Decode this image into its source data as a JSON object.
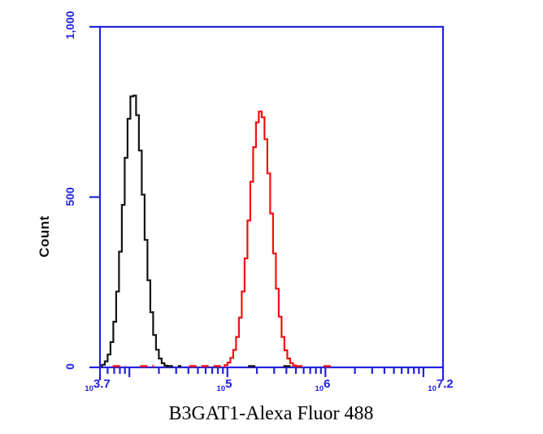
{
  "figure": {
    "background_color": "#ffffff",
    "axis_color": "#2222dd",
    "tick_label_color": "#2222dd",
    "text_color": "#141414"
  },
  "y_axis": {
    "title": "Count",
    "tick_labels": [
      "1,000",
      "500",
      "0"
    ]
  },
  "x_axis": {
    "title": "B3GAT1-Alexa Fluor 488",
    "scale": "log10",
    "tick_labels": [
      {
        "base": "10",
        "exponent": "3.7"
      },
      {
        "base": "10",
        "exponent": "5"
      },
      {
        "base": "10",
        "exponent": "6"
      },
      {
        "base": "10",
        "exponent": "7.2"
      }
    ]
  },
  "chart_data": {
    "type": "line",
    "subtype": "flow-cytometry-overlay-histogram",
    "title": "",
    "xlabel": "B3GAT1-Alexa Fluor 488",
    "ylabel": "Count",
    "x_scale": "log10",
    "xlim_log10": [
      3.7,
      7.2
    ],
    "ylim": [
      0,
      1000
    ],
    "y_ticks": [
      0,
      500,
      1000
    ],
    "x_major_tick_exponents": [
      4,
      5,
      6,
      7
    ],
    "x_labeled_tick_values": [
      3.7,
      5,
      6,
      7.2
    ],
    "grid": false,
    "legend": "none",
    "series": [
      {
        "name": "black-curve",
        "color": "#141414",
        "peak_log10_x": 4.04,
        "peak_count": 805,
        "sigma_left_log10": 0.1,
        "sigma_right_log10": 0.105,
        "baseline_segments_log10": [
          [
            4.37,
            4.53
          ],
          [
            5.21,
            5.32
          ],
          [
            5.57,
            5.65
          ]
        ]
      },
      {
        "name": "red-curve",
        "color": "#f01010",
        "peak_log10_x": 5.34,
        "peak_count": 752,
        "sigma_left_log10": 0.115,
        "sigma_right_log10": 0.11,
        "baseline_segments_log10": [
          [
            3.83,
            3.96
          ],
          [
            4.11,
            4.25
          ],
          [
            4.61,
            4.97
          ],
          [
            5.69,
            5.78
          ],
          [
            5.98,
            6.07
          ]
        ]
      }
    ]
  }
}
